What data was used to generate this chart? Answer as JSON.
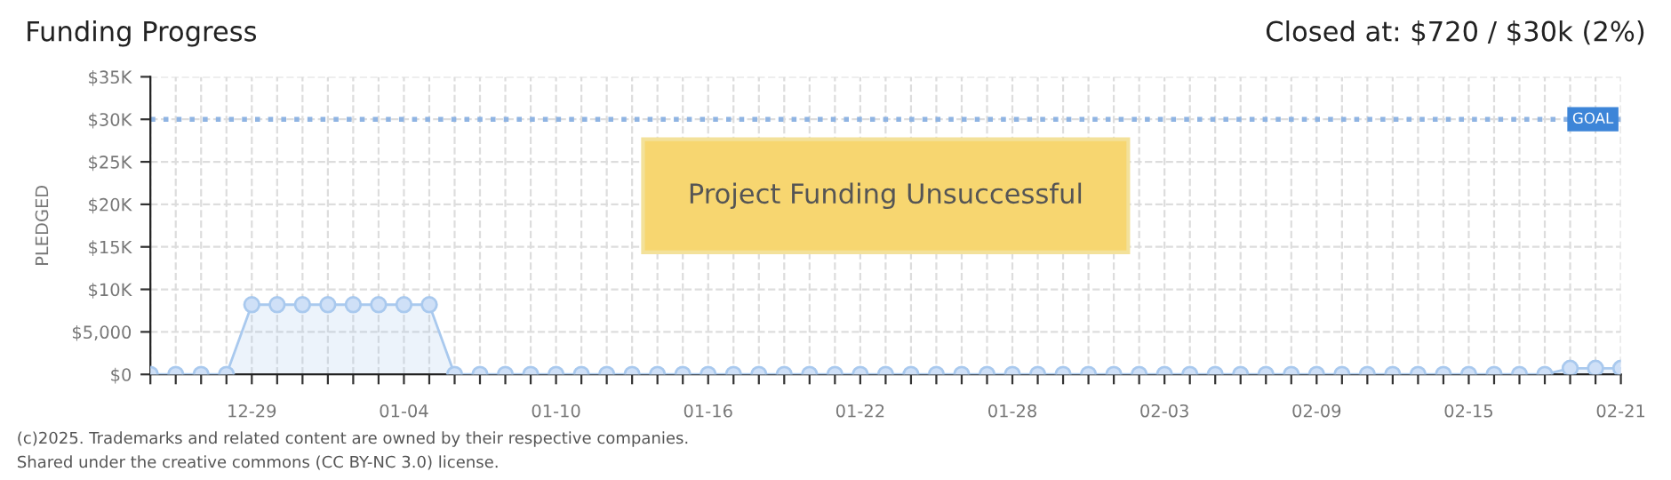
{
  "chart_data": {
    "type": "area",
    "title": "Funding Progress",
    "subtitle": "Closed at: $720 / $30k (2%)",
    "ylabel": "PLEDGED",
    "annotations": [
      "Project Funding Unsuccessful",
      "(c)2025. Trademarks and related content are owned by their respective companies.",
      "Shared under the creative commons (CC BY-NC 3.0) license."
    ],
    "x": [
      "2024-12-25",
      "2024-12-26",
      "2024-12-27",
      "2024-12-28",
      "2024-12-29",
      "2024-12-30",
      "2024-12-31",
      "2025-01-01",
      "2025-01-02",
      "2025-01-03",
      "2025-01-04",
      "2025-01-05",
      "2025-01-06",
      "2025-01-07",
      "2025-01-08",
      "2025-01-09",
      "2025-01-10",
      "2025-01-11",
      "2025-01-12",
      "2025-01-13",
      "2025-01-14",
      "2025-01-15",
      "2025-01-16",
      "2025-01-17",
      "2025-01-18",
      "2025-01-19",
      "2025-01-20",
      "2025-01-21",
      "2025-01-22",
      "2025-01-23",
      "2025-01-24",
      "2025-01-25",
      "2025-01-26",
      "2025-01-27",
      "2025-01-28",
      "2025-01-29",
      "2025-01-30",
      "2025-01-31",
      "2025-02-01",
      "2025-02-02",
      "2025-02-03",
      "2025-02-04",
      "2025-02-05",
      "2025-02-06",
      "2025-02-07",
      "2025-02-08",
      "2025-02-09",
      "2025-02-10",
      "2025-02-11",
      "2025-02-12",
      "2025-02-13",
      "2025-02-14",
      "2025-02-15",
      "2025-02-16",
      "2025-02-17",
      "2025-02-18",
      "2025-02-19",
      "2025-02-20",
      "2025-02-21"
    ],
    "series": [
      {
        "color": "#a9c9ee",
        "values": [
          0,
          0,
          0,
          0,
          8200,
          8200,
          8200,
          8200,
          8200,
          8200,
          8200,
          8200,
          0,
          0,
          0,
          0,
          0,
          0,
          0,
          0,
          0,
          0,
          0,
          0,
          0,
          0,
          0,
          0,
          0,
          0,
          0,
          0,
          0,
          0,
          0,
          0,
          0,
          0,
          0,
          0,
          0,
          0,
          0,
          0,
          0,
          0,
          0,
          0,
          0,
          0,
          0,
          0,
          0,
          0,
          0,
          0,
          720,
          720,
          720
        ]
      }
    ],
    "xlim": [
      "2024-12-25",
      "2025-02-21"
    ],
    "xticks": [
      {
        "value": "2024-12-25",
        "label": null
      },
      {
        "value": "2024-12-26",
        "label": null
      },
      {
        "value": "2024-12-27",
        "label": null
      },
      {
        "value": "2024-12-28",
        "label": null
      },
      {
        "value": "2024-12-29",
        "label": "12-29"
      },
      {
        "value": "2024-12-30",
        "label": null
      },
      {
        "value": "2024-12-31",
        "label": null
      },
      {
        "value": "2025-01-01",
        "label": null
      },
      {
        "value": "2025-01-02",
        "label": null
      },
      {
        "value": "2025-01-03",
        "label": null
      },
      {
        "value": "2025-01-04",
        "label": "01-04"
      },
      {
        "value": "2025-01-05",
        "label": null
      },
      {
        "value": "2025-01-06",
        "label": null
      },
      {
        "value": "2025-01-07",
        "label": null
      },
      {
        "value": "2025-01-08",
        "label": null
      },
      {
        "value": "2025-01-09",
        "label": null
      },
      {
        "value": "2025-01-10",
        "label": "01-10"
      },
      {
        "value": "2025-01-11",
        "label": null
      },
      {
        "value": "2025-01-12",
        "label": null
      },
      {
        "value": "2025-01-13",
        "label": null
      },
      {
        "value": "2025-01-14",
        "label": null
      },
      {
        "value": "2025-01-15",
        "label": null
      },
      {
        "value": "2025-01-16",
        "label": "01-16"
      },
      {
        "value": "2025-01-17",
        "label": null
      },
      {
        "value": "2025-01-18",
        "label": null
      },
      {
        "value": "2025-01-19",
        "label": null
      },
      {
        "value": "2025-01-20",
        "label": null
      },
      {
        "value": "2025-01-21",
        "label": null
      },
      {
        "value": "2025-01-22",
        "label": "01-22"
      },
      {
        "value": "2025-01-23",
        "label": null
      },
      {
        "value": "2025-01-24",
        "label": null
      },
      {
        "value": "2025-01-25",
        "label": null
      },
      {
        "value": "2025-01-26",
        "label": null
      },
      {
        "value": "2025-01-27",
        "label": null
      },
      {
        "value": "2025-01-28",
        "label": "01-28"
      },
      {
        "value": "2025-01-29",
        "label": null
      },
      {
        "value": "2025-01-30",
        "label": null
      },
      {
        "value": "2025-01-31",
        "label": null
      },
      {
        "value": "2025-02-01",
        "label": null
      },
      {
        "value": "2025-02-02",
        "label": null
      },
      {
        "value": "2025-02-03",
        "label": "02-03"
      },
      {
        "value": "2025-02-04",
        "label": null
      },
      {
        "value": "2025-02-05",
        "label": null
      },
      {
        "value": "2025-02-06",
        "label": null
      },
      {
        "value": "2025-02-07",
        "label": null
      },
      {
        "value": "2025-02-08",
        "label": null
      },
      {
        "value": "2025-02-09",
        "label": "02-09"
      },
      {
        "value": "2025-02-10",
        "label": null
      },
      {
        "value": "2025-02-11",
        "label": null
      },
      {
        "value": "2025-02-12",
        "label": null
      },
      {
        "value": "2025-02-13",
        "label": null
      },
      {
        "value": "2025-02-14",
        "label": null
      },
      {
        "value": "2025-02-15",
        "label": "02-15"
      },
      {
        "value": "2025-02-16",
        "label": null
      },
      {
        "value": "2025-02-17",
        "label": null
      },
      {
        "value": "2025-02-18",
        "label": null
      },
      {
        "value": "2025-02-19",
        "label": null
      },
      {
        "value": "2025-02-20",
        "label": null
      },
      {
        "value": "2025-02-21",
        "label": "02-21"
      }
    ],
    "ylim": [
      0,
      35000
    ],
    "yticks": [
      {
        "value": 0,
        "label": "$0"
      },
      {
        "value": 5000,
        "label": "$5,000"
      },
      {
        "value": 10000,
        "label": "$10K"
      },
      {
        "value": 15000,
        "label": "$15K"
      },
      {
        "value": 20000,
        "label": "$20K"
      },
      {
        "value": 25000,
        "label": "$25K"
      },
      {
        "value": 30000,
        "label": "$30K"
      },
      {
        "value": 35000,
        "label": "$35K"
      }
    ],
    "ref_lines": [
      {
        "axis": "y",
        "value": 30000,
        "label": "GOAL",
        "color": "#8fb4e3",
        "line_style": "dotted"
      }
    ],
    "grid": true,
    "marker": "circle",
    "legend": false
  }
}
